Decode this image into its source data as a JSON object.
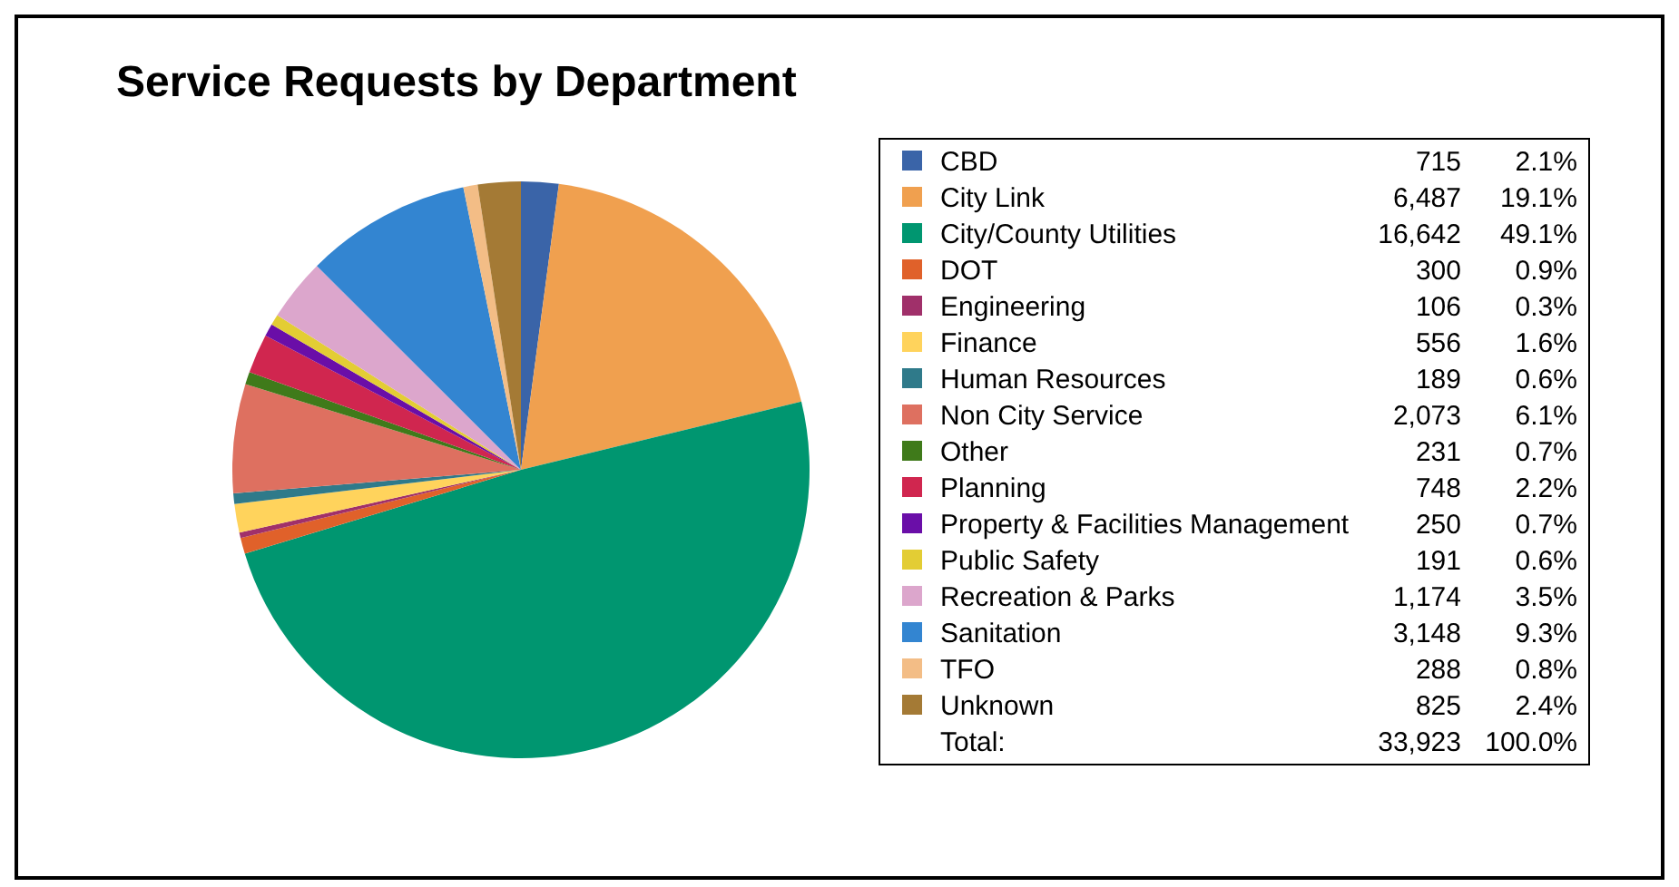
{
  "chart_data": {
    "type": "pie",
    "title": "Service Requests by Department",
    "categories": [
      "CBD",
      "City Link",
      "City/County Utilities",
      "DOT",
      "Engineering",
      "Finance",
      "Human Resources",
      "Non City Service",
      "Other",
      "Planning",
      "Property & Facilities Management",
      "Public Safety",
      "Recreation & Parks",
      "Sanitation",
      "TFO",
      "Unknown"
    ],
    "values": [
      2.1,
      19.1,
      49.1,
      0.9,
      0.3,
      1.6,
      0.6,
      6.1,
      0.7,
      2.2,
      0.7,
      0.6,
      3.5,
      9.3,
      0.8,
      2.4
    ],
    "colors": [
      "#3a64a8",
      "#f0a04f",
      "#009670",
      "#e0612a",
      "#a0306a",
      "#ffd35c",
      "#2f7a8a",
      "#de7060",
      "#3f7a1a",
      "#d0264f",
      "#6a0ea8",
      "#e3cd34",
      "#dca6cc",
      "#3385d1",
      "#f3bd86",
      "#a47a35"
    ],
    "value_labels": [
      "2.1%",
      "19.1%",
      "49.1%",
      "0.9%",
      "0.3%",
      "1.6%",
      "0.6%",
      "6.1%",
      "0.7%",
      "2.2%",
      "0.7%",
      "0.6%",
      "3.5%",
      "9.3%",
      "0.8%",
      "2.4%"
    ],
    "legend": "right",
    "annotations": [
      "715",
      "6,487",
      "16,642",
      "300",
      "106",
      "556",
      "189",
      "2,073",
      "231",
      "748",
      "250",
      "191",
      "1,174",
      "3,148",
      "288",
      "825",
      "Total:",
      "33,923",
      "100.0%"
    ]
  }
}
